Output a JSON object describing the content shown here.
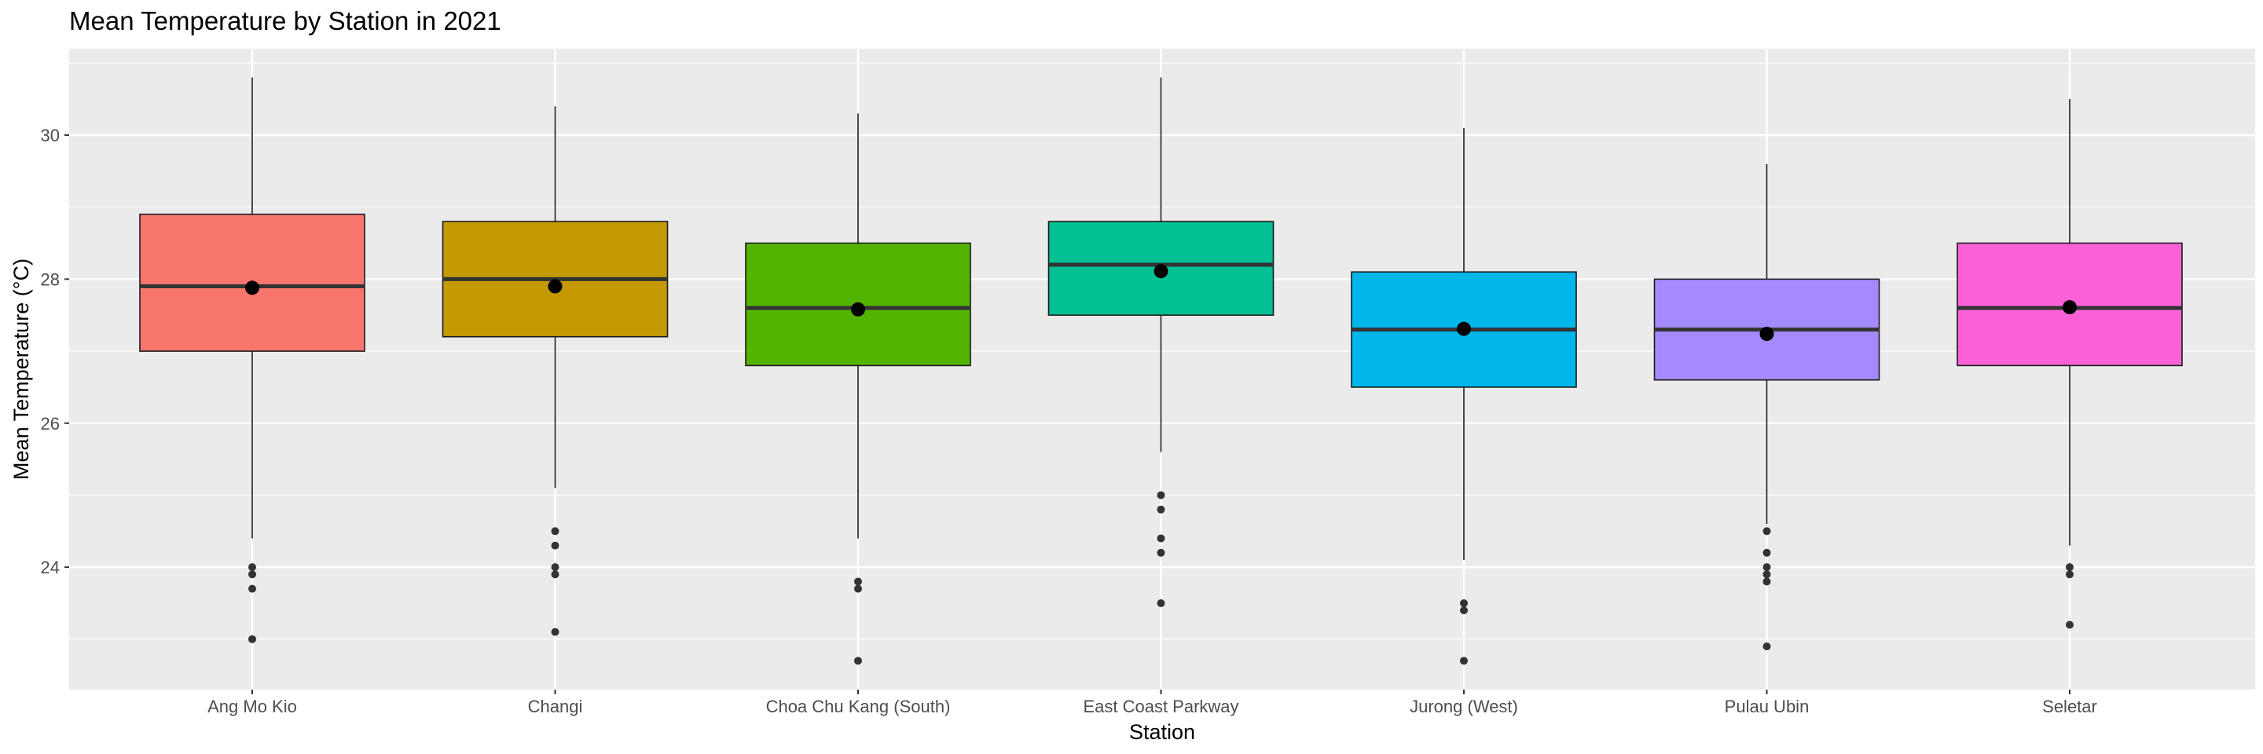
{
  "chart_data": {
    "type": "boxplot",
    "title": "Mean Temperature by Station in 2021",
    "xlabel": "Station",
    "ylabel": "Mean Temperature (°C)",
    "ylim": [
      22.3,
      31.2
    ],
    "yticks": [
      24,
      26,
      28,
      30
    ],
    "grid": true,
    "categories": [
      "Ang Mo Kio",
      "Changi",
      "Choa Chu Kang (South)",
      "East Coast Parkway",
      "Jurong (West)",
      "Pulau Ubin",
      "Seletar"
    ],
    "colors": [
      "#F8766D",
      "#C49A00",
      "#53B400",
      "#00C094",
      "#00B6EB",
      "#A58AFF",
      "#FB61D7"
    ],
    "boxes": [
      {
        "category": "Ang Mo Kio",
        "whisker_low": 24.4,
        "q1": 27.0,
        "median": 27.9,
        "q3": 28.9,
        "whisker_high": 30.8,
        "mean": 27.88,
        "outliers": [
          24.0,
          23.9,
          23.7,
          23.0
        ]
      },
      {
        "category": "Changi",
        "whisker_low": 25.1,
        "q1": 27.2,
        "median": 28.0,
        "q3": 28.8,
        "whisker_high": 30.4,
        "mean": 27.9,
        "outliers": [
          24.5,
          24.3,
          24.0,
          23.9,
          23.1
        ]
      },
      {
        "category": "Choa Chu Kang (South)",
        "whisker_low": 24.4,
        "q1": 26.8,
        "median": 27.6,
        "q3": 28.5,
        "whisker_high": 30.3,
        "mean": 27.58,
        "outliers": [
          23.8,
          23.7,
          22.7
        ]
      },
      {
        "category": "East Coast Parkway",
        "whisker_low": 25.6,
        "q1": 27.5,
        "median": 28.2,
        "q3": 28.8,
        "whisker_high": 30.8,
        "mean": 28.11,
        "outliers": [
          25.0,
          24.8,
          24.4,
          24.2,
          23.5
        ]
      },
      {
        "category": "Jurong (West)",
        "whisker_low": 24.1,
        "q1": 26.5,
        "median": 27.3,
        "q3": 28.1,
        "whisker_high": 30.1,
        "mean": 27.31,
        "outliers": [
          23.5,
          23.4,
          22.7
        ]
      },
      {
        "category": "Pulau Ubin",
        "whisker_low": 24.6,
        "q1": 26.6,
        "median": 27.3,
        "q3": 28.0,
        "whisker_high": 29.6,
        "mean": 27.24,
        "outliers": [
          24.5,
          24.2,
          24.0,
          23.9,
          23.8,
          22.9
        ]
      },
      {
        "category": "Seletar",
        "whisker_low": 24.3,
        "q1": 26.8,
        "median": 27.6,
        "q3": 28.5,
        "whisker_high": 30.5,
        "mean": 27.61,
        "outliers": [
          24.0,
          23.9,
          23.2
        ]
      }
    ]
  }
}
